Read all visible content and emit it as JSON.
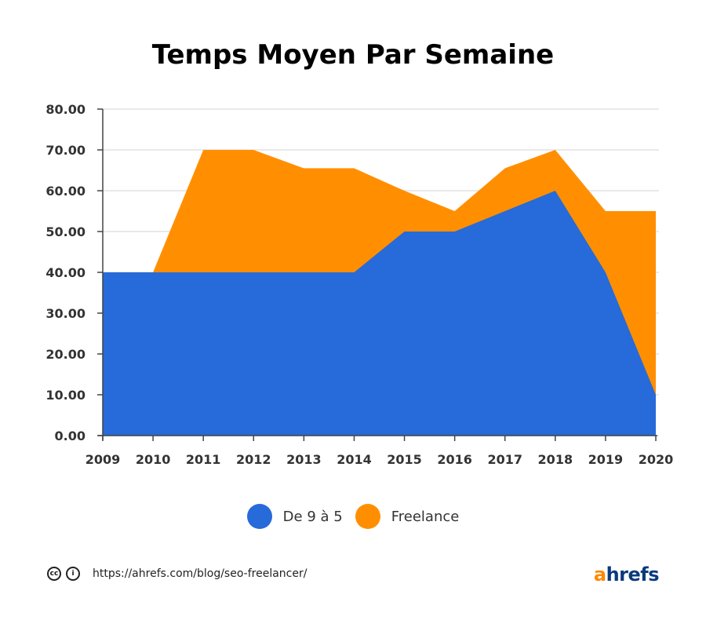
{
  "chart_data": {
    "type": "area",
    "title": "Temps Moyen Par Semaine",
    "x": [
      "2009",
      "2010",
      "2011",
      "2012",
      "2013",
      "2014",
      "2015",
      "2016",
      "2017",
      "2018",
      "2019",
      "2020"
    ],
    "series": [
      {
        "name": "De 9 à 5",
        "color": "#276ad9",
        "values": [
          40,
          40,
          40,
          40,
          40,
          40,
          50,
          50,
          55,
          60,
          40,
          10
        ]
      },
      {
        "name": "Freelance",
        "color": "#ff8f00",
        "values": [
          40,
          40,
          70,
          70,
          65.5,
          65.5,
          60,
          55,
          65.5,
          70,
          55,
          55
        ]
      }
    ],
    "ylim": [
      0,
      80
    ],
    "yticks": [
      "0.00",
      "10.00",
      "20.00",
      "30.00",
      "40.00",
      "50.00",
      "60.00",
      "70.00",
      "80.00"
    ],
    "grid": true,
    "legend_position": "bottom"
  },
  "footer": {
    "url": "https://ahrefs.com/blog/seo-freelancer/",
    "cc_label": "cc",
    "by_label": "i"
  },
  "logo": {
    "a": "a",
    "rest": "hrefs"
  }
}
